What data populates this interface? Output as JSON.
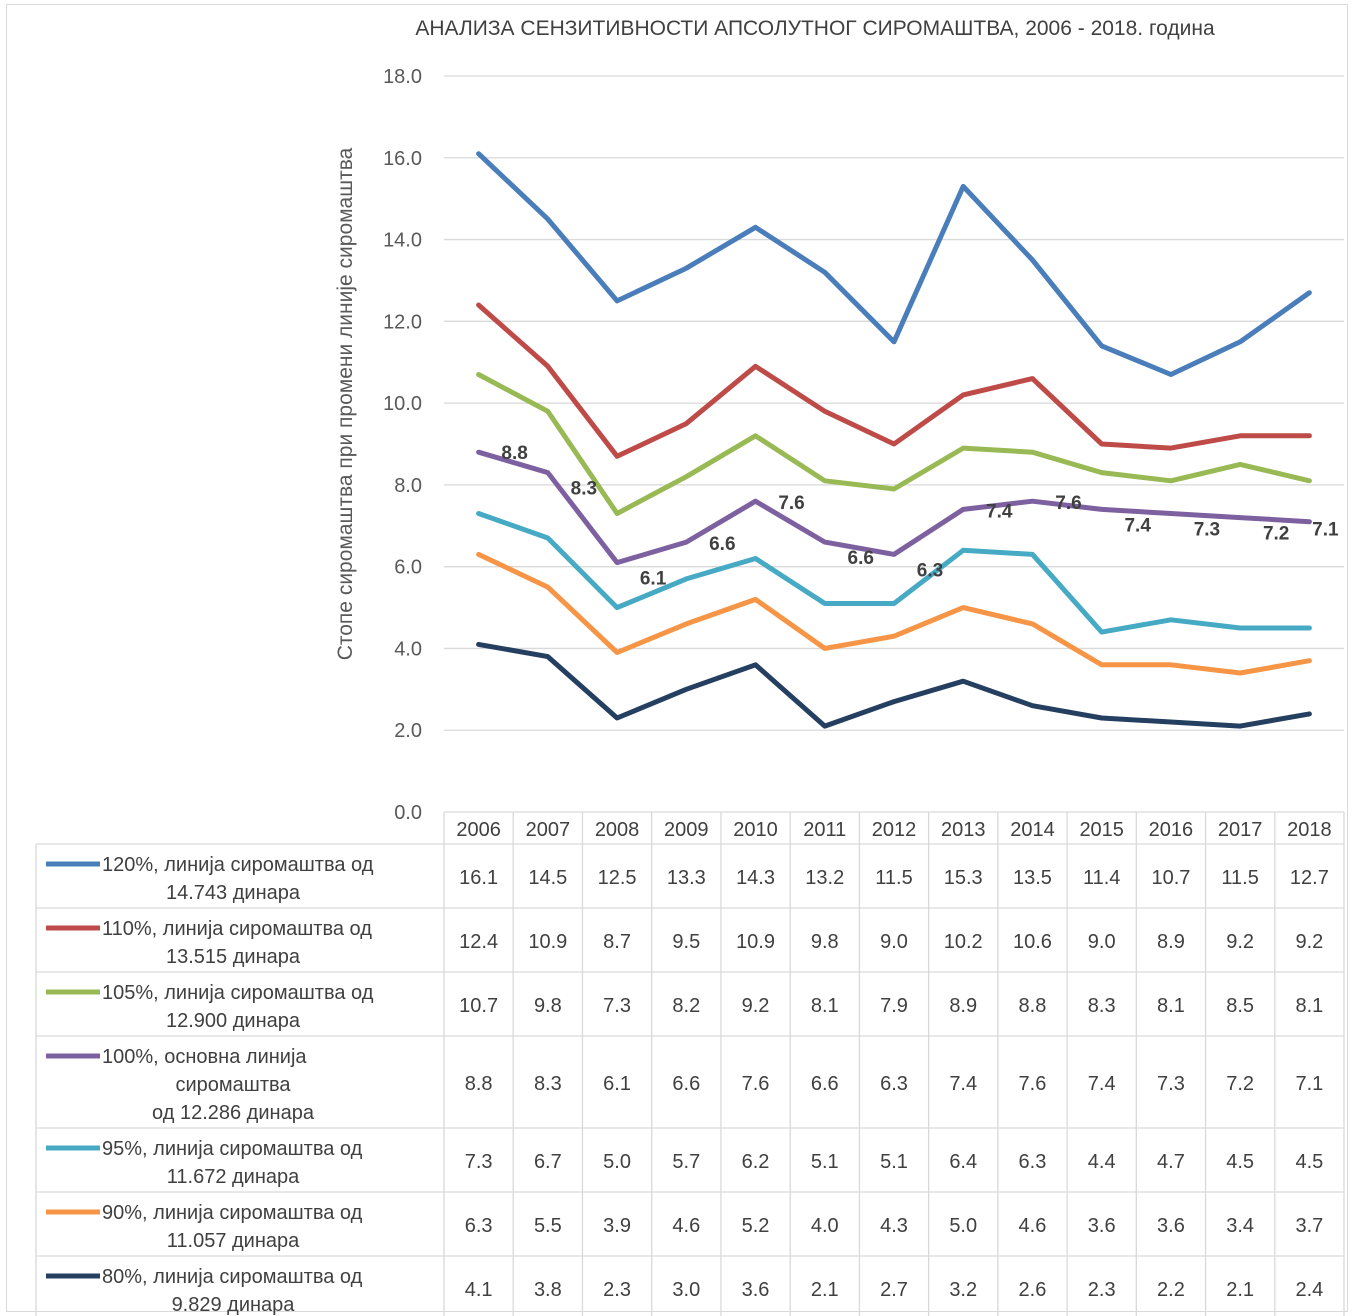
{
  "chart_data": {
    "type": "line",
    "title": "АНАЛИЗА СЕНЗИТИВНОСТИ АПСОЛУТНОГ СИРОМАШТВА, 2006 - 2018. година",
    "ylabel": "Стопе сиромаштва при промени линије сиромаштва",
    "xlabel": "",
    "ylim": [
      0,
      18
    ],
    "y_ticks": [
      "0.0",
      "2.0",
      "4.0",
      "6.0",
      "8.0",
      "10.0",
      "12.0",
      "14.0",
      "16.0",
      "18.0"
    ],
    "grid": true,
    "legend_placement": "data table below plot",
    "categories": [
      "2006",
      "2007",
      "2008",
      "2009",
      "2010",
      "2011",
      "2012",
      "2013",
      "2014",
      "2015",
      "2016",
      "2017",
      "2018"
    ],
    "series": [
      {
        "name": "120%, линија сиромаштва од 14.743 динара",
        "name_lines": [
          "120%, линија сиромаштва од",
          "14.743 динара"
        ],
        "color": "#4a7ebb",
        "values": [
          16.1,
          14.5,
          12.5,
          13.3,
          14.3,
          13.2,
          11.5,
          15.3,
          13.5,
          11.4,
          10.7,
          11.5,
          12.7
        ],
        "labels": [
          "16.1",
          "14.5",
          "12.5",
          "13.3",
          "14.3",
          "13.2",
          "11.5",
          "15.3",
          "13.5",
          "11.4",
          "10.7",
          "11.5",
          "12.7"
        ]
      },
      {
        "name": "110%, линија сиромаштва од 13.515 динара",
        "name_lines": [
          "110%, линија сиромаштва од",
          "13.515 динара"
        ],
        "color": "#be4b48",
        "values": [
          12.4,
          10.9,
          8.7,
          9.5,
          10.9,
          9.8,
          9.0,
          10.2,
          10.6,
          9.0,
          8.9,
          9.2,
          9.2
        ],
        "labels": [
          "12.4",
          "10.9",
          "8.7",
          "9.5",
          "10.9",
          "9.8",
          "9.0",
          "10.2",
          "10.6",
          "9.0",
          "8.9",
          "9.2",
          "9.2"
        ]
      },
      {
        "name": "105%, линија сиромаштва од 12.900 динара",
        "name_lines": [
          "105%, линија сиромаштва од",
          "12.900 динара"
        ],
        "color": "#98b954",
        "values": [
          10.7,
          9.8,
          7.3,
          8.2,
          9.2,
          8.1,
          7.9,
          8.9,
          8.8,
          8.3,
          8.1,
          8.5,
          8.1
        ],
        "labels": [
          "10.7",
          "9.8",
          "7.3",
          "8.2",
          "9.2",
          "8.1",
          "7.9",
          "8.9",
          "8.8",
          "8.3",
          "8.1",
          "8.5",
          "8.1"
        ]
      },
      {
        "name": "100%, основна линија сиромаштва од 12.286 динара",
        "name_lines": [
          "100%, основна линија",
          "сиромаштва",
          "од 12.286 динара"
        ],
        "color": "#7d60a0",
        "values": [
          8.8,
          8.3,
          6.1,
          6.6,
          7.6,
          6.6,
          6.3,
          7.4,
          7.6,
          7.4,
          7.3,
          7.2,
          7.1
        ],
        "labels": [
          "8.8",
          "8.3",
          "6.1",
          "6.6",
          "7.6",
          "6.6",
          "6.3",
          "7.4",
          "7.6",
          "7.4",
          "7.3",
          "7.2",
          "7.1"
        ],
        "data_labels": true
      },
      {
        "name": "95%, линија сиромаштва од 11.672 динара",
        "name_lines": [
          "95%, линија сиромаштва од",
          "11.672 динара"
        ],
        "color": "#46aac5",
        "values": [
          7.3,
          6.7,
          5.0,
          5.7,
          6.2,
          5.1,
          5.1,
          6.4,
          6.3,
          4.4,
          4.7,
          4.5,
          4.5
        ],
        "labels": [
          "7.3",
          "6.7",
          "5.0",
          "5.7",
          "6.2",
          "5.1",
          "5.1",
          "6.4",
          "6.3",
          "4.4",
          "4.7",
          "4.5",
          "4.5"
        ]
      },
      {
        "name": "90%, линија сиромаштва од 11.057 динара",
        "name_lines": [
          "90%, линија сиромаштва од",
          "11.057 динара"
        ],
        "color": "#f69546",
        "values": [
          6.3,
          5.5,
          3.9,
          4.6,
          5.2,
          4.0,
          4.3,
          5.0,
          4.6,
          3.6,
          3.6,
          3.4,
          3.7
        ],
        "labels": [
          "6.3",
          "5.5",
          "3.9",
          "4.6",
          "5.2",
          "4.0",
          "4.3",
          "5.0",
          "4.6",
          "3.6",
          "3.6",
          "3.4",
          "3.7"
        ]
      },
      {
        "name": "80%, линија сиромаштва од 9.829 динара",
        "name_lines": [
          "80%, линија сиромаштва од",
          "9.829 динара"
        ],
        "color": "#243f60",
        "values": [
          4.1,
          3.8,
          2.3,
          3.0,
          3.6,
          2.1,
          2.7,
          3.2,
          2.6,
          2.3,
          2.2,
          2.1,
          2.4
        ],
        "labels": [
          "4.1",
          "3.8",
          "2.3",
          "3.0",
          "3.6",
          "2.1",
          "2.7",
          "3.2",
          "2.6",
          "2.3",
          "2.2",
          "2.1",
          "2.4"
        ]
      }
    ]
  }
}
